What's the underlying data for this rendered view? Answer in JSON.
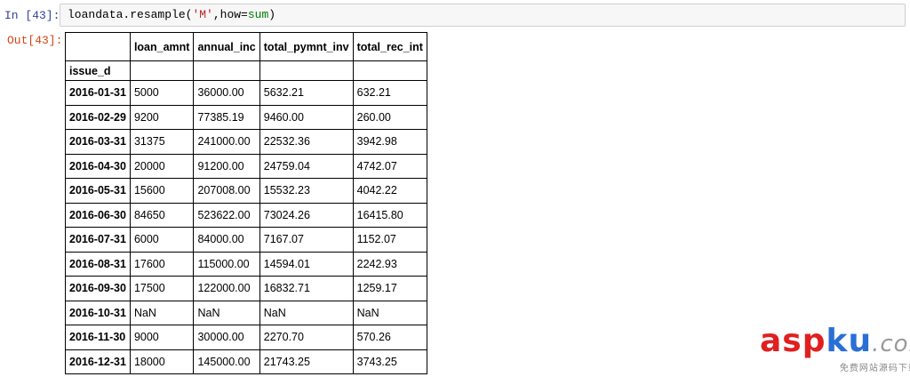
{
  "input": {
    "prompt": "In  [43]:",
    "code": [
      "loandata.resample(",
      "'M'",
      ",how=",
      "sum",
      ")"
    ]
  },
  "output": {
    "prompt": "Out[43]:",
    "table": {
      "columns": [
        "loan_amnt",
        "annual_inc",
        "total_pymnt_inv",
        "total_rec_int"
      ],
      "index_name": "issue_d",
      "rows": [
        [
          "2016-01-31",
          "5000",
          "36000.00",
          "5632.21",
          "632.21"
        ],
        [
          "2016-02-29",
          "9200",
          "77385.19",
          "9460.00",
          "260.00"
        ],
        [
          "2016-03-31",
          "31375",
          "241000.00",
          "22532.36",
          "3942.98"
        ],
        [
          "2016-04-30",
          "20000",
          "91200.00",
          "24759.04",
          "4742.07"
        ],
        [
          "2016-05-31",
          "15600",
          "207008.00",
          "15532.23",
          "4042.22"
        ],
        [
          "2016-06-30",
          "84650",
          "523622.00",
          "73024.26",
          "16415.80"
        ],
        [
          "2016-07-31",
          "6000",
          "84000.00",
          "7167.07",
          "1152.07"
        ],
        [
          "2016-08-31",
          "17600",
          "115000.00",
          "14594.01",
          "2242.93"
        ],
        [
          "2016-09-30",
          "17500",
          "122000.00",
          "16832.71",
          "1259.17"
        ],
        [
          "2016-10-31",
          "NaN",
          "NaN",
          "NaN",
          "NaN"
        ],
        [
          "2016-11-30",
          "9000",
          "30000.00",
          "2270.70",
          "570.26"
        ],
        [
          "2016-12-31",
          "18000",
          "145000.00",
          "21743.25",
          "3743.25"
        ]
      ]
    }
  },
  "watermark": {
    "logo": [
      "asp",
      "ku",
      ".com"
    ],
    "tagline": "免费网站源码下载站!"
  }
}
